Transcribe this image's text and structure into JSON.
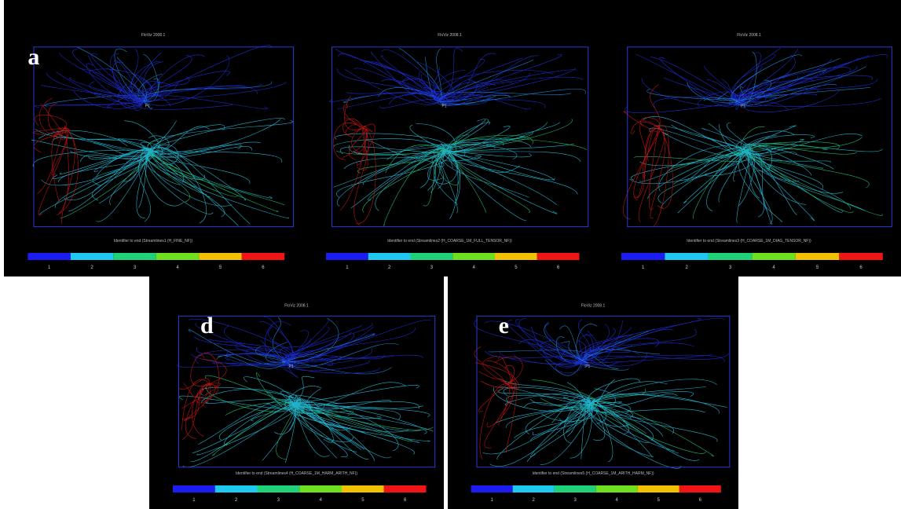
{
  "panels": [
    {
      "label": "a",
      "title": "FloViz 2008.1",
      "well": "P1",
      "caption": "Identifier to end (Streamlines1 (H_FINE_NF))"
    },
    {
      "title": "FloViz 2008.1",
      "well": "P1",
      "caption": "Identifier to end (Streamlines2 (H_COARSE_1M_FULL_TENSOR_NF))"
    },
    {
      "title": "FloViz 2008.1",
      "well": "P1",
      "caption": "Identifier to end (Streamlines3 (H_COARSE_1M_DIAG_TENSOR_NF))"
    },
    {
      "label": "d",
      "title": "FloViz 2008.1",
      "well": "P1",
      "caption": "Identifier to end (Streamlines4 (H_COARSE_1M_HARM_ARITH_NF))"
    },
    {
      "label": "e",
      "title": "FloViz 2008.1",
      "well": "P1",
      "caption": "Identifier to end (Streamlines5 (H_COARSE_1M_ARITH_HARM_NF))"
    }
  ],
  "colorbar": {
    "ticks": [
      1,
      2,
      3,
      4,
      5,
      6
    ],
    "colors": [
      "#1c1cf0",
      "#1ec8f0",
      "#1fd27a",
      "#6ee01e",
      "#f2c200",
      "#f01414"
    ]
  }
}
